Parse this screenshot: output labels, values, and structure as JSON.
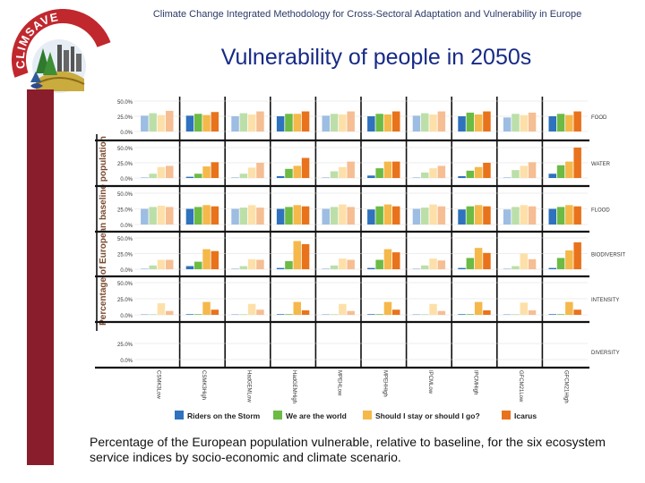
{
  "header": {
    "text": "Climate Change Integrated Methodology for Cross-Sectoral Adaptation and Vulnerability in Europe"
  },
  "logo": {
    "text": "CLIMSAVE"
  },
  "sidebar": {
    "url": "WWW.CLIMSAVE.eu"
  },
  "title": "Vulnerability of people in 2050s",
  "caption": "Percentage of the European population vulnerable, relative to baseline, for the six ecosystem service indices by socio-economic and climate scenario.",
  "colors": {
    "logo_red": "#c0282d",
    "sidebar": "#8a1d2b",
    "title": "#172a86",
    "grid_divider": "#111111"
  },
  "chart_data": {
    "type": "bar",
    "title": "Vulnerability of people in 2050s",
    "ylabel": "Percentage of European baseline population",
    "categories": [
      "CSMK3Low",
      "CSMK3High",
      "HadGEMLow",
      "HadGEMHigh",
      "MPEHLow",
      "MPEHHigh",
      "IPCMLow",
      "IPCMHigh",
      "GFCM21Low",
      "GFCM21High"
    ],
    "series": [
      {
        "name": "Riders on the Storm",
        "color": "#2f72bd",
        "faded_color": "#9dbde3"
      },
      {
        "name": "We are the world",
        "color": "#6cbb45",
        "faded_color": "#bcdfa9"
      },
      {
        "name": "Should I stay or should I go?",
        "color": "#f5b84a",
        "faded_color": "#fde0a9"
      },
      {
        "name": "Icarus",
        "color": "#e8731c",
        "faded_color": "#f6be93"
      }
    ],
    "faded_categories": [
      "CSMK3Low",
      "HadGEMLow",
      "MPEHLow",
      "IPCMLow",
      "GFCM21Low"
    ],
    "panels": [
      {
        "name": "FOOD",
        "ticks": [
          "50.0%",
          "25.0%",
          "0.0%"
        ],
        "ymax": 50,
        "values": [
          [
            26,
            30,
            27,
            34
          ],
          [
            26,
            29,
            27,
            32
          ],
          [
            25,
            30,
            28,
            33
          ],
          [
            25,
            29,
            29,
            33
          ],
          [
            26,
            29,
            28,
            33
          ],
          [
            25,
            29,
            28,
            33
          ],
          [
            26,
            30,
            28,
            33
          ],
          [
            25,
            31,
            28,
            33
          ],
          [
            23,
            29,
            27,
            31
          ],
          [
            25,
            29,
            27,
            33
          ]
        ]
      },
      {
        "name": "WATER",
        "ticks": [
          "50.0%",
          "25.0%",
          "0.0%"
        ],
        "ymax": 50,
        "values": [
          [
            1,
            7,
            18,
            20
          ],
          [
            2,
            7,
            19,
            26
          ],
          [
            1,
            7,
            17,
            25
          ],
          [
            3,
            15,
            20,
            33
          ],
          [
            1,
            11,
            18,
            27
          ],
          [
            4,
            16,
            27,
            27
          ],
          [
            1,
            9,
            16,
            20
          ],
          [
            3,
            12,
            18,
            25
          ],
          [
            1,
            13,
            20,
            26
          ],
          [
            7,
            21,
            27,
            50
          ]
        ]
      },
      {
        "name": "FLOOD",
        "ticks": [
          "50.0%",
          "25.0%",
          "0.0%"
        ],
        "ymax": 50,
        "values": [
          [
            25,
            28,
            30,
            28
          ],
          [
            25,
            28,
            31,
            29
          ],
          [
            25,
            27,
            31,
            27
          ],
          [
            25,
            28,
            31,
            29
          ],
          [
            25,
            28,
            32,
            28
          ],
          [
            24,
            29,
            32,
            29
          ],
          [
            25,
            27,
            32,
            29
          ],
          [
            24,
            29,
            31,
            29
          ],
          [
            24,
            28,
            31,
            29
          ],
          [
            25,
            28,
            31,
            29
          ]
        ]
      },
      {
        "name": "BIODIVERSITY",
        "ticks": [
          "50.0%",
          "25.0%",
          "0.0%"
        ],
        "ymax": 50,
        "values": [
          [
            1,
            6,
            15,
            15
          ],
          [
            5,
            12,
            32,
            29
          ],
          [
            1,
            5,
            16,
            15
          ],
          [
            2,
            13,
            45,
            40
          ],
          [
            1,
            6,
            17,
            15
          ],
          [
            2,
            15,
            32,
            27
          ],
          [
            1,
            6,
            17,
            14
          ],
          [
            2,
            18,
            34,
            26
          ],
          [
            1,
            5,
            25,
            16
          ],
          [
            2,
            18,
            30,
            43
          ]
        ]
      },
      {
        "name": "INTENSITY",
        "ticks": [
          "50.0%",
          "25.0%",
          "0.0%"
        ],
        "ymax": 50,
        "values": [
          [
            1,
            1,
            18,
            6
          ],
          [
            1,
            1,
            20,
            8
          ],
          [
            1,
            1,
            17,
            8
          ],
          [
            1,
            1,
            20,
            7
          ],
          [
            1,
            1,
            17,
            6
          ],
          [
            1,
            1,
            20,
            8
          ],
          [
            1,
            1,
            17,
            6
          ],
          [
            1,
            1,
            20,
            7
          ],
          [
            1,
            1,
            19,
            7
          ],
          [
            1,
            1,
            20,
            8
          ]
        ]
      },
      {
        "name": "DIVERSITY",
        "ticks": [
          "25.0%",
          "0.0%"
        ],
        "ymax": 25,
        "values": [
          [
            0,
            0,
            0,
            0
          ],
          [
            0,
            0,
            0,
            0
          ],
          [
            0,
            0,
            0,
            0
          ],
          [
            0,
            0,
            0,
            0
          ],
          [
            0,
            0,
            0,
            0
          ],
          [
            0,
            0,
            0,
            0
          ],
          [
            0,
            0,
            0,
            0
          ],
          [
            0,
            0,
            0,
            0
          ],
          [
            0,
            0,
            0,
            0
          ],
          [
            0,
            0,
            0,
            0
          ]
        ]
      }
    ]
  }
}
